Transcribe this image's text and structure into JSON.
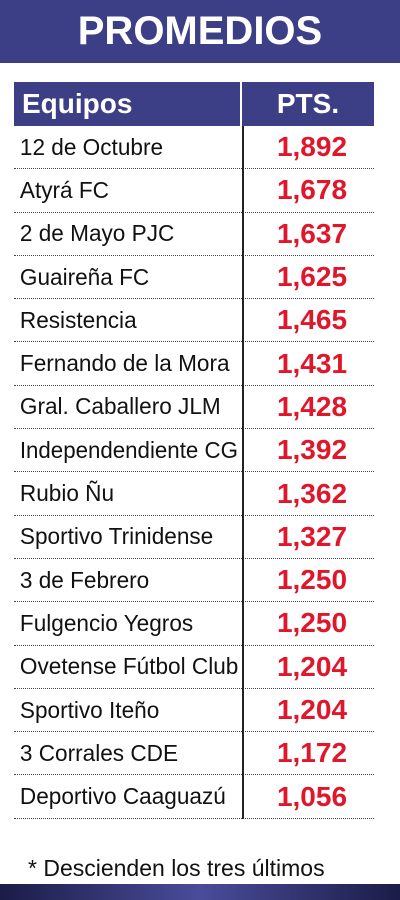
{
  "title": "PROMEDIOS",
  "table": {
    "header_team": "Equipos",
    "header_pts": "PTS.",
    "rows": [
      {
        "team": "12 de Octubre",
        "pts": "1,892"
      },
      {
        "team": "Atyrá FC",
        "pts": "1,678"
      },
      {
        "team": "2 de Mayo PJC",
        "pts": "1,637"
      },
      {
        "team": "Guaireña FC",
        "pts": "1,625"
      },
      {
        "team": "Resistencia",
        "pts": "1,465"
      },
      {
        "team": "Fernando de la Mora",
        "pts": "1,431"
      },
      {
        "team": "Gral. Caballero JLM",
        "pts": "1,428"
      },
      {
        "team": "Independendiente CG",
        "pts": "1,392"
      },
      {
        "team": "Rubio Ñu",
        "pts": "1,362"
      },
      {
        "team": "Sportivo Trinidense",
        "pts": "1,327"
      },
      {
        "team": "3 de Febrero",
        "pts": "1,250"
      },
      {
        "team": "Fulgencio Yegros",
        "pts": "1,250"
      },
      {
        "team": "Ovetense Fútbol Club",
        "pts": "1,204"
      },
      {
        "team": "Sportivo Iteño",
        "pts": "1,204"
      },
      {
        "team": "3 Corrales CDE",
        "pts": "1,172"
      },
      {
        "team": "Deportivo Caaguazú",
        "pts": "1,056"
      }
    ]
  },
  "footnote": "* Descienden los tres últimos",
  "colors": {
    "header_bg": "#3d3f86",
    "points": "#e0162b"
  }
}
